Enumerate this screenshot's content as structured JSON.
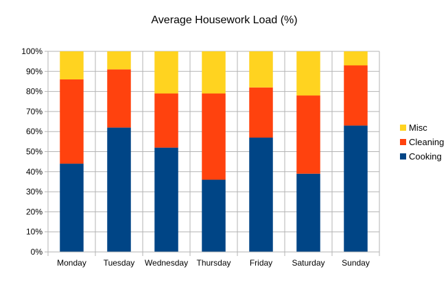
{
  "chart_data": {
    "type": "bar",
    "stacked": true,
    "title": "Average Housework Load (%)",
    "xlabel": "",
    "ylabel": "",
    "categories": [
      "Monday",
      "Tuesday",
      "Wednesday",
      "Thursday",
      "Friday",
      "Saturday",
      "Sunday"
    ],
    "ylim": [
      0,
      100
    ],
    "yticks": [
      "0%",
      "10%",
      "20%",
      "30%",
      "40%",
      "50%",
      "60%",
      "70%",
      "80%",
      "90%",
      "100%"
    ],
    "grid": true,
    "legend_position": "right",
    "series": [
      {
        "name": "Cooking",
        "color": "#004586",
        "values": [
          44,
          62,
          52,
          36,
          57,
          39,
          63
        ]
      },
      {
        "name": "Cleaning",
        "color": "#ff420e",
        "values": [
          42,
          29,
          27,
          43,
          25,
          39,
          30
        ]
      },
      {
        "name": "Misc",
        "color": "#ffd320",
        "values": [
          14,
          9,
          21,
          21,
          18,
          22,
          7
        ]
      }
    ]
  }
}
